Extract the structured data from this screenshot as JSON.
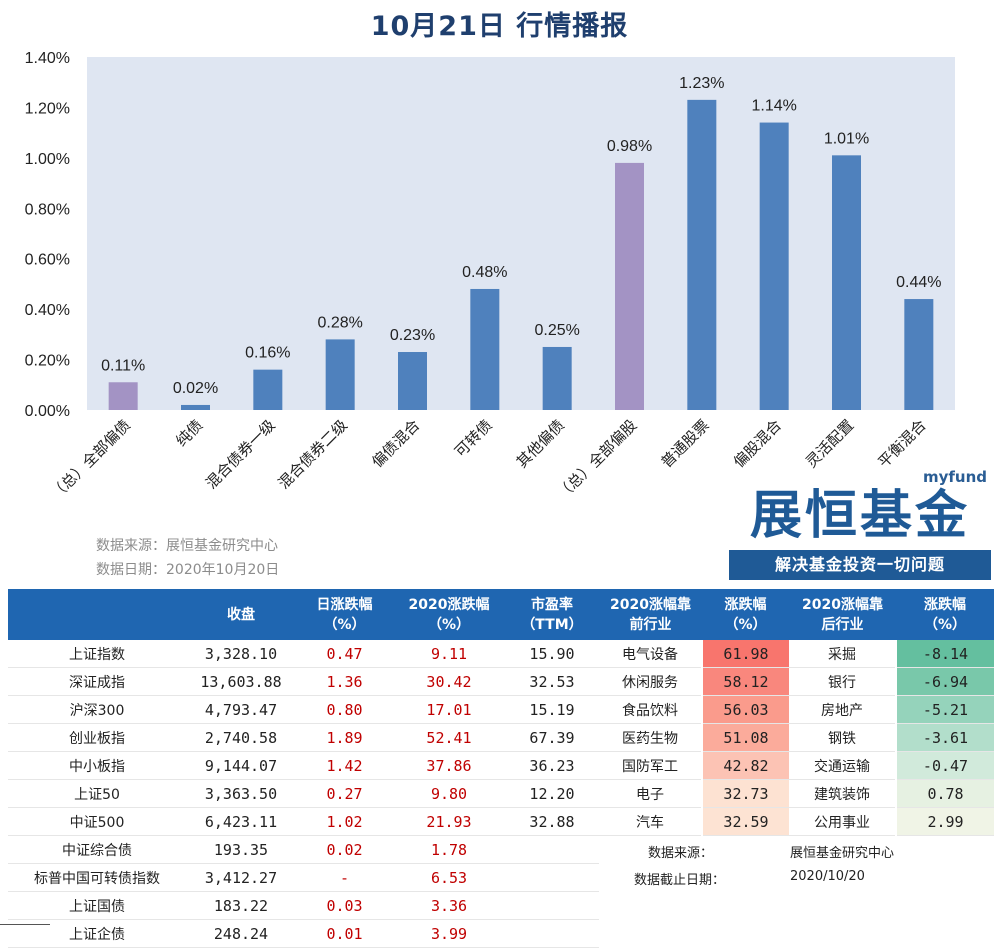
{
  "title": "10月21日  行情播报",
  "chart_data": {
    "type": "bar",
    "categories": [
      "（总）全部偏债",
      "纯债",
      "混合债券一级",
      "混合债券二级",
      "偏债混合",
      "可转债",
      "其他偏债",
      "（总）全部偏股",
      "普通股票",
      "偏股混合",
      "灵活配置",
      "平衡混合"
    ],
    "values": [
      0.11,
      0.02,
      0.16,
      0.28,
      0.23,
      0.48,
      0.25,
      0.98,
      1.23,
      1.14,
      1.01,
      0.44
    ],
    "value_labels": [
      "0.11%",
      "0.02%",
      "0.16%",
      "0.28%",
      "0.23%",
      "0.48%",
      "0.25%",
      "0.98%",
      "1.23%",
      "1.14%",
      "1.01%",
      "0.44%"
    ],
    "highlight": [
      true,
      false,
      false,
      false,
      false,
      false,
      false,
      true,
      false,
      false,
      false,
      false
    ],
    "yticks": [
      "0.00%",
      "0.20%",
      "0.40%",
      "0.60%",
      "0.80%",
      "1.00%",
      "1.20%",
      "1.40%"
    ],
    "ylim": [
      0,
      1.4
    ],
    "colors": {
      "bar": "#4f81bd",
      "highlight": "#a393c4",
      "plot_bg": "#dfe6f2"
    }
  },
  "source": {
    "line1": "数据来源：展恒基金研究中心",
    "line2": "数据日期：2020年10月20日"
  },
  "logo": {
    "small": "myfund",
    "big": "展恒基金",
    "slogan": "解决基金投资一切问题"
  },
  "table": {
    "headers": {
      "close": "收盘",
      "day": "日涨跌幅",
      "day_unit": "（%）",
      "ytd": "2020涨跌幅",
      "ytd_unit": "（%）",
      "pe": "市盈率",
      "pe_unit": "（TTM）",
      "top": "2020涨幅靠",
      "top2": "前行业",
      "topchg": "涨跌幅",
      "topchg_unit": "（%）",
      "bot": "2020涨幅靠",
      "bot2": "后行业",
      "botchg": "涨跌幅",
      "botchg_unit": "（%）"
    },
    "rows": [
      {
        "name": "上证指数",
        "close": "3,328.10",
        "day": "0.47",
        "ytd": "9.11",
        "pe": "15.90",
        "top": "电气设备",
        "topv": "61.98",
        "bot": "采掘",
        "botv": "-8.14"
      },
      {
        "name": "深证成指",
        "close": "13,603.88",
        "day": "1.36",
        "ytd": "30.42",
        "pe": "32.53",
        "top": "休闲服务",
        "topv": "58.12",
        "bot": "银行",
        "botv": "-6.94"
      },
      {
        "name": "沪深300",
        "close": "4,793.47",
        "day": "0.80",
        "ytd": "17.01",
        "pe": "15.19",
        "top": "食品饮料",
        "topv": "56.03",
        "bot": "房地产",
        "botv": "-5.21"
      },
      {
        "name": "创业板指",
        "close": "2,740.58",
        "day": "1.89",
        "ytd": "52.41",
        "pe": "67.39",
        "top": "医药生物",
        "topv": "51.08",
        "bot": "钢铁",
        "botv": "-3.61"
      },
      {
        "name": "中小板指",
        "close": "9,144.07",
        "day": "1.42",
        "ytd": "37.86",
        "pe": "36.23",
        "top": "国防军工",
        "topv": "42.82",
        "bot": "交通运输",
        "botv": "-0.47"
      },
      {
        "name": "上证50",
        "close": "3,363.50",
        "day": "0.27",
        "ytd": "9.80",
        "pe": "12.20",
        "top": "电子",
        "topv": "32.73",
        "bot": "建筑装饰",
        "botv": "0.78"
      },
      {
        "name": "中证500",
        "close": "6,423.11",
        "day": "1.02",
        "ytd": "21.93",
        "pe": "32.88",
        "top": "汽车",
        "topv": "32.59",
        "bot": "公用事业",
        "botv": "2.99"
      },
      {
        "name": "中证综合债",
        "close": "193.35",
        "day": "0.02",
        "ytd": "1.78",
        "pe": ""
      },
      {
        "name": "标普中国可转债指数",
        "close": "3,412.27",
        "day": "-",
        "ytd": "6.53",
        "pe": ""
      },
      {
        "name": "上证国债",
        "close": "183.22",
        "day": "0.03",
        "ytd": "3.36",
        "pe": ""
      },
      {
        "name": "上证企债",
        "close": "248.24",
        "day": "0.01",
        "ytd": "3.99",
        "pe": ""
      }
    ],
    "note": {
      "src_label": "数据来源：",
      "src_value": "展恒基金研究中心",
      "date_label": "数据截止日期：",
      "date_value": "2020/10/20"
    },
    "colors": {
      "top": [
        "#f8756d",
        "#f9877d",
        "#fa9b8c",
        "#fbab9b",
        "#fcc3b4",
        "#fde2d2",
        "#fde3d3"
      ],
      "bot": [
        "#64bf9f",
        "#79c8aa",
        "#95d3bb",
        "#b2decb",
        "#d1eadb",
        "#e6f1e2",
        "#f0f4e6"
      ]
    }
  }
}
